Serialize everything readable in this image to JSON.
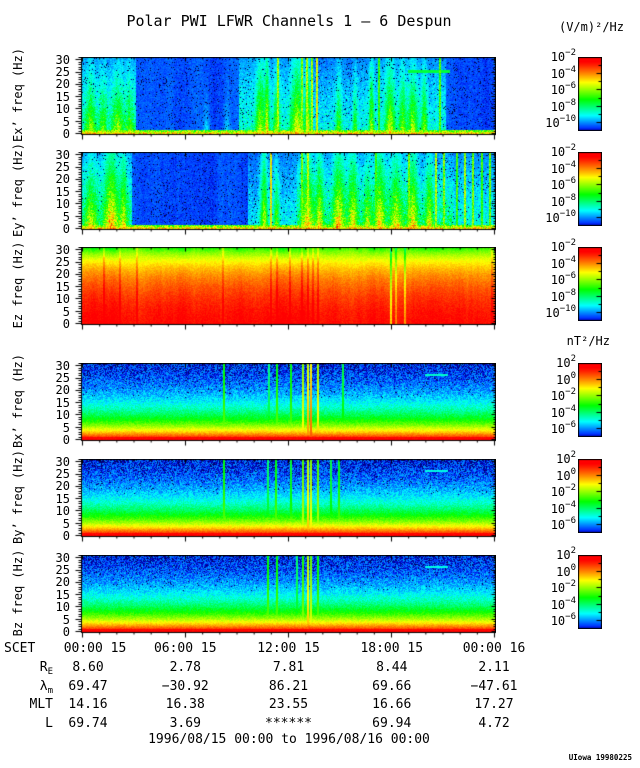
{
  "title": "Polar PWI LFWR Channels 1 — 6 Despun",
  "e_units": "(V/m)²/Hz",
  "b_units": "nT²/Hz",
  "time_caption": "1996/08/15 00:00 to 1996/08/16 00:00",
  "credit": "UIowa 19980225",
  "scet_label": "SCET",
  "chart_data": {
    "type": "heatmap",
    "subtype": "time-frequency spectrogram stack (6 panels: Ex', Ey', Ez, Bx', By', Bz)",
    "title": "Polar PWI LFWR Channels 1 — 6 Despun",
    "x_axis_label": "SCET",
    "x_ticks": [
      "00:00 15",
      "06:00 15",
      "12:00 15",
      "18:00 15",
      "00:00 16"
    ],
    "y_ticks": [
      0,
      5,
      10,
      15,
      20,
      25,
      30
    ],
    "y_max": 31,
    "grid": false,
    "legend_position": "right colorbars per panel",
    "panels": [
      {
        "id": "ex",
        "ylabel": "Ex’ freq (Hz)",
        "units": "(V/m)²/Hz",
        "style": "e",
        "seed": 11,
        "colorbar": {
          "base": "10",
          "exponents": [
            "−2",
            "−4",
            "−6",
            "−8",
            "−10"
          ]
        },
        "features": {
          "washes": [
            [
              0.0,
              0.13,
              0.3
            ],
            [
              0.38,
              0.6,
              0.25
            ],
            [
              0.6,
              0.88,
              0.24
            ]
          ],
          "bursts": [
            [
              0.02,
              0.008,
              0.4,
              0.5
            ],
            [
              0.05,
              0.006,
              0.35,
              0.4
            ],
            [
              0.085,
              0.01,
              0.4,
              0.6
            ],
            [
              0.115,
              0.007,
              0.3,
              0.45
            ],
            [
              0.3,
              0.006,
              0.18,
              0.3
            ],
            [
              0.35,
              0.005,
              0.15,
              0.3
            ],
            [
              0.43,
              0.007,
              0.5,
              0.7
            ],
            [
              0.447,
              0.004,
              0.55,
              0.9
            ],
            [
              0.47,
              0.006,
              0.4,
              0.5
            ],
            [
              0.52,
              0.01,
              0.55,
              0.8
            ],
            [
              0.546,
              0.005,
              0.5,
              0.8
            ],
            [
              0.62,
              0.005,
              0.38,
              0.5
            ],
            [
              0.66,
              0.004,
              0.32,
              0.5
            ],
            [
              0.7,
              0.004,
              0.45,
              0.8
            ],
            [
              0.745,
              0.008,
              0.5,
              0.7
            ],
            [
              0.775,
              0.006,
              0.42,
              0.6
            ],
            [
              0.8,
              0.008,
              0.48,
              0.7
            ],
            [
              0.828,
              0.005,
              0.42,
              0.6
            ]
          ],
          "lines": [
            [
              0.472,
              0.6
            ],
            [
              0.53,
              0.58
            ],
            [
              0.542,
              0.62
            ],
            [
              0.554,
              0.6
            ],
            [
              0.566,
              0.66
            ],
            [
              0.717,
              0.5
            ],
            [
              0.865,
              0.52
            ]
          ],
          "dash": [
            0.787,
            0.89,
            0.82,
            0.42
          ]
        }
      },
      {
        "id": "ey",
        "ylabel": "Ey’ freq (Hz)",
        "units": "(V/m)²/Hz",
        "style": "e",
        "seed": 22,
        "colorbar": {
          "base": "10",
          "exponents": [
            "−2",
            "−4",
            "−6",
            "−8",
            "−10"
          ]
        },
        "features": {
          "washes": [
            [
              0.0,
              0.12,
              0.35
            ],
            [
              0.4,
              0.52,
              0.22
            ],
            [
              0.52,
              0.9,
              0.38
            ],
            [
              0.9,
              1.0,
              0.25
            ]
          ],
          "bursts": [
            [
              0.02,
              0.01,
              0.45,
              0.6
            ],
            [
              0.07,
              0.012,
              0.55,
              0.9
            ],
            [
              0.1,
              0.006,
              0.4,
              0.6
            ],
            [
              0.44,
              0.006,
              0.5,
              0.9
            ],
            [
              0.47,
              0.005,
              0.4,
              0.6
            ],
            [
              0.545,
              0.01,
              0.5,
              0.8
            ],
            [
              0.575,
              0.006,
              0.45,
              0.7
            ],
            [
              0.62,
              0.01,
              0.5,
              0.9
            ],
            [
              0.655,
              0.008,
              0.45,
              0.8
            ],
            [
              0.69,
              0.006,
              0.4,
              0.6
            ],
            [
              0.72,
              0.008,
              0.5,
              0.8
            ],
            [
              0.76,
              0.01,
              0.45,
              0.7
            ],
            [
              0.8,
              0.008,
              0.5,
              0.8
            ],
            [
              0.84,
              0.006,
              0.45,
              0.7
            ]
          ],
          "lines": [
            [
              0.455,
              0.68
            ],
            [
              0.53,
              0.56
            ],
            [
              0.545,
              0.62
            ],
            [
              0.71,
              0.5
            ],
            [
              0.79,
              0.56
            ],
            [
              0.855,
              0.6
            ],
            [
              0.875,
              0.56
            ],
            [
              0.905,
              0.5
            ],
            [
              0.925,
              0.6
            ],
            [
              0.945,
              0.56
            ],
            [
              0.965,
              0.5
            ],
            [
              0.985,
              0.55
            ]
          ]
        }
      },
      {
        "id": "ez",
        "ylabel": "Ez freq (Hz)",
        "units": "(V/m)²/Hz",
        "style": "ez",
        "seed": 33,
        "colorbar": {
          "base": "10",
          "exponents": [
            "−2",
            "−4",
            "−6",
            "−8",
            "−10"
          ]
        },
        "features": {
          "lines": [
            [
              0.05,
              0.08
            ],
            [
              0.09,
              0.07
            ],
            [
              0.13,
              0.08
            ],
            [
              0.34,
              0.07
            ],
            [
              0.455,
              0.08
            ],
            [
              0.47,
              0.07
            ],
            [
              0.5,
              0.08
            ],
            [
              0.53,
              0.07
            ],
            [
              0.545,
              0.08
            ],
            [
              0.557,
              0.07
            ],
            [
              0.57,
              0.08
            ],
            [
              0.99,
              0.06
            ],
            [
              0.745,
              -0.2
            ],
            [
              0.757,
              -0.12
            ],
            [
              0.78,
              -0.15
            ]
          ]
        }
      },
      {
        "id": "bx",
        "ylabel": "Bx’ freq (Hz)",
        "units": "nT²/Hz",
        "style": "b",
        "seed": 44,
        "colorbar": {
          "base": "10",
          "exponents": [
            "2",
            "0",
            "−2",
            "−4",
            "−6"
          ]
        },
        "features": {
          "lines": [
            [
              0.341,
              0.56
            ],
            [
              0.45,
              0.44
            ],
            [
              0.47,
              0.56
            ],
            [
              0.504,
              0.55
            ],
            [
              0.533,
              0.72
            ],
            [
              0.545,
              0.8
            ],
            [
              0.553,
              0.86
            ],
            [
              0.569,
              0.74
            ],
            [
              0.63,
              0.5
            ]
          ],
          "dash": [
            0.83,
            0.885,
            0.85,
            0.3
          ]
        }
      },
      {
        "id": "by",
        "ylabel": "By’ freq (Hz)",
        "units": "nT²/Hz",
        "style": "b",
        "seed": 55,
        "colorbar": {
          "base": "10",
          "exponents": [
            "2",
            "0",
            "−2",
            "−4",
            "−6"
          ]
        },
        "features": {
          "lines": [
            [
              0.341,
              0.56
            ],
            [
              0.448,
              0.46
            ],
            [
              0.467,
              0.56
            ],
            [
              0.504,
              0.52
            ],
            [
              0.533,
              0.66
            ],
            [
              0.545,
              0.76
            ],
            [
              0.553,
              0.72
            ],
            [
              0.569,
              0.64
            ],
            [
              0.6,
              0.5
            ],
            [
              0.62,
              0.55
            ]
          ],
          "dash": [
            0.83,
            0.885,
            0.85,
            0.28
          ]
        }
      },
      {
        "id": "bz",
        "ylabel": "Bz freq (Hz)",
        "units": "nT²/Hz",
        "style": "b",
        "seed": 66,
        "colorbar": {
          "base": "10",
          "exponents": [
            "2",
            "0",
            "−2",
            "−4",
            "−6"
          ]
        },
        "features": {
          "lines": [
            [
              0.448,
              0.56
            ],
            [
              0.47,
              0.56
            ],
            [
              0.518,
              0.46
            ],
            [
              0.533,
              0.6
            ],
            [
              0.545,
              0.76
            ],
            [
              0.553,
              0.68
            ],
            [
              0.57,
              0.56
            ]
          ],
          "dash": [
            0.83,
            0.885,
            0.85,
            0.28
          ]
        }
      }
    ],
    "ephemeris": {
      "rows": [
        {
          "label": "R",
          "sub": "E",
          "values": [
            "8.60",
            "2.78",
            "7.81",
            "8.44",
            "2.11"
          ]
        },
        {
          "label": "λ",
          "sub": "m",
          "values": [
            "69.47",
            "−30.92",
            "86.21",
            "69.66",
            "−47.61"
          ]
        },
        {
          "label": "MLT",
          "sub": "",
          "values": [
            "14.16",
            "16.38",
            "23.55",
            "16.66",
            "17.27"
          ]
        },
        {
          "label": "L",
          "sub": "",
          "values": [
            "69.74",
            "3.69",
            "******",
            "69.94",
            "4.72"
          ]
        }
      ]
    }
  }
}
